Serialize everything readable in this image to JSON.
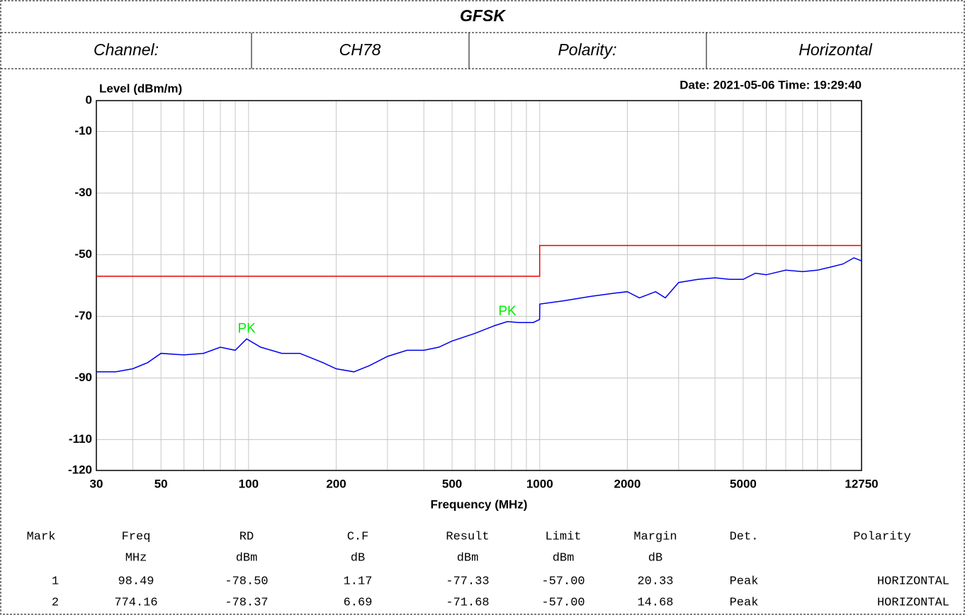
{
  "header": {
    "title": "GFSK",
    "cells": [
      "Channel:",
      "CH78",
      "Polarity:",
      "Horizontal"
    ]
  },
  "chart_data": {
    "type": "line",
    "ylabel": "Level (dBm/m)",
    "xlabel": "Frequency (MHz)",
    "stamp": "Date: 2021-05-06  Time: 19:29:40",
    "log_x": true,
    "grid": true,
    "xlim": [
      30,
      12750
    ],
    "ylim": [
      -120,
      0
    ],
    "xticks": [
      30,
      50,
      100,
      200,
      500,
      1000,
      2000,
      5000,
      12750
    ],
    "xminor": [
      40,
      60,
      70,
      80,
      90,
      300,
      400,
      600,
      700,
      800,
      900,
      3000,
      4000,
      6000,
      7000,
      8000,
      9000,
      10000
    ],
    "yticks": [
      0,
      -10,
      -30,
      -50,
      -70,
      -90,
      -110,
      -120
    ],
    "series": [
      {
        "color": "#0000ee",
        "x": [
          30,
          35,
          40,
          45,
          50,
          60,
          70,
          80,
          90,
          98.49,
          110,
          130,
          150,
          180,
          200,
          230,
          260,
          300,
          350,
          400,
          450,
          500,
          600,
          700,
          774.16,
          850,
          950,
          999,
          1001,
          1200,
          1500,
          1800,
          2000,
          2200,
          2500,
          2700,
          3000,
          3500,
          4000,
          4500,
          5000,
          5500,
          6000,
          7000,
          8000,
          9000,
          10000,
          11000,
          12000,
          12750
        ],
        "values": [
          -88,
          -88,
          -87,
          -85,
          -82,
          -82.5,
          -82,
          -80,
          -81,
          -77.3,
          -80,
          -82,
          -82,
          -85,
          -87,
          -88,
          -86,
          -83,
          -81,
          -81,
          -80,
          -78,
          -75.5,
          -73,
          -71.7,
          -72,
          -72,
          -71,
          -66,
          -65,
          -63.5,
          -62.5,
          -62,
          -64,
          -62,
          -64,
          -59,
          -58,
          -57.5,
          -58,
          -58,
          -56,
          -56.5,
          -55,
          -55.5,
          -55,
          -54,
          -53,
          -51,
          -52
        ]
      },
      {
        "color": "#ee0000",
        "x": [
          30,
          1000,
          1000,
          12750
        ],
        "values": [
          -57,
          -57,
          -47,
          -47
        ]
      }
    ],
    "markers": [
      {
        "label": "PK",
        "x": 98.49,
        "y": -77.33,
        "color": "#00ee00"
      },
      {
        "label": "PK",
        "x": 774.16,
        "y": -71.68,
        "color": "#00ee00"
      }
    ]
  },
  "table": {
    "columns": [
      "Mark",
      "Freq",
      "RD",
      "C.F",
      "Result",
      "Limit",
      "Margin",
      "Det.",
      "Polarity"
    ],
    "units": [
      "MHz",
      "dBm",
      "dB",
      "dBm",
      "dBm",
      "dB"
    ],
    "rows": [
      [
        "1",
        "98.49",
        "-78.50",
        "1.17",
        "-77.33",
        "-57.00",
        "20.33",
        "Peak",
        "HORIZONTAL"
      ],
      [
        "2",
        "774.16",
        "-78.37",
        "6.69",
        "-71.68",
        "-57.00",
        "14.68",
        "Peak",
        "HORIZONTAL"
      ]
    ]
  }
}
